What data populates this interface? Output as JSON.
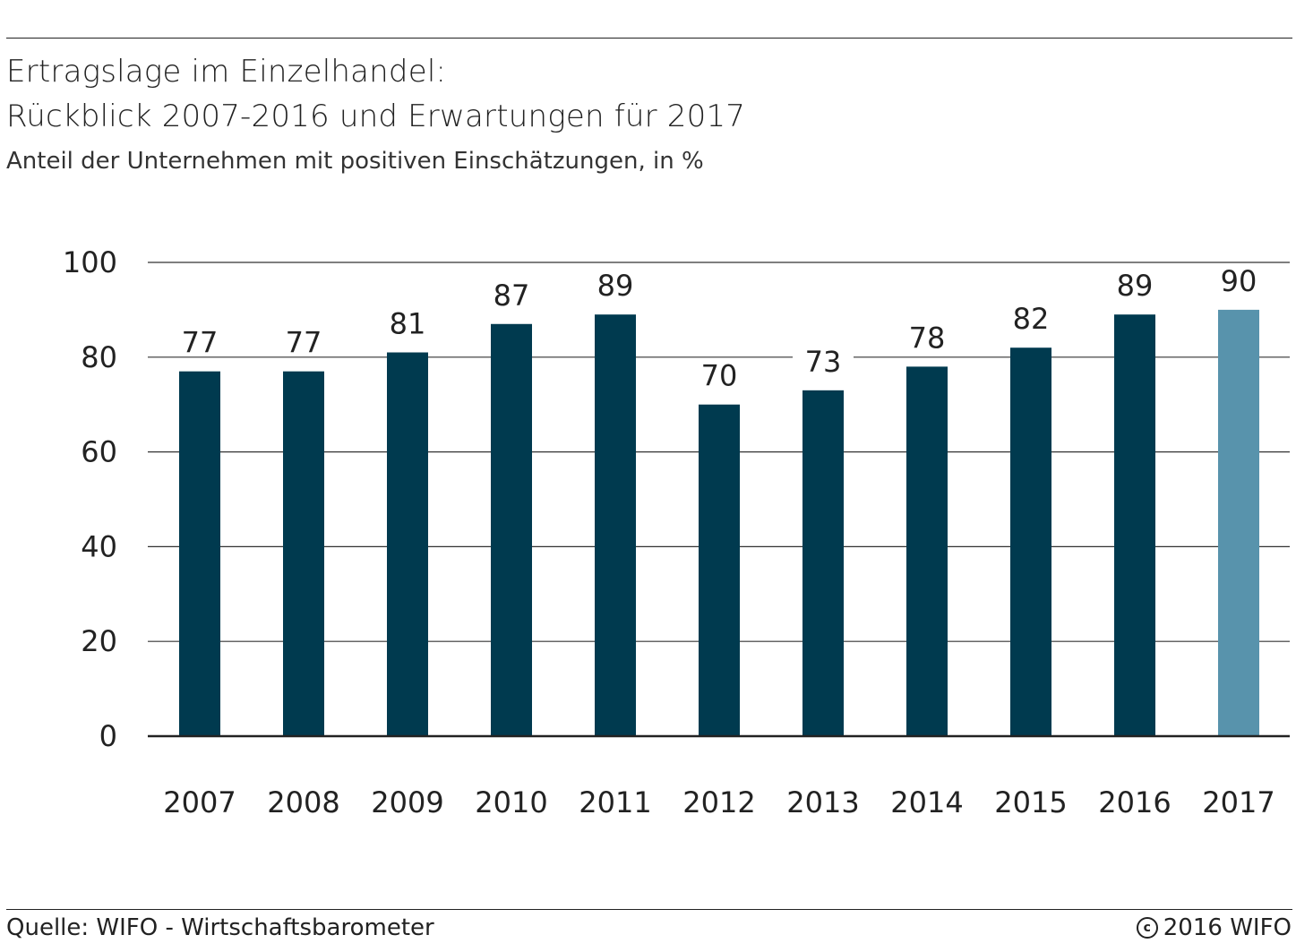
{
  "header": {
    "title_line1": "Ertragslage im Einzelhandel:",
    "title_line2": "Rückblick 2007-2016 und Erwartungen für 2017",
    "subtitle": "Anteil der Unternehmen mit positiven Einschätzungen, in %"
  },
  "footer": {
    "source": "Quelle: WIFO - Wirtschaftsbarometer",
    "copyright": "2016 WIFO",
    "copyright_icon": "copyright-icon"
  },
  "colors": {
    "bar": "#003a4f",
    "bar_highlight": "#5893ac",
    "grid": "#333333"
  },
  "chart_data": {
    "type": "bar",
    "title": "Ertragslage im Einzelhandel: Rückblick 2007-2016 und Erwartungen für 2017",
    "subtitle": "Anteil der Unternehmen mit positiven Einschätzungen, in %",
    "xlabel": "",
    "ylabel": "",
    "categories": [
      "2007",
      "2008",
      "2009",
      "2010",
      "2011",
      "2012",
      "2013",
      "2014",
      "2015",
      "2016",
      "2017"
    ],
    "values": [
      77,
      77,
      81,
      87,
      89,
      70,
      73,
      78,
      82,
      89,
      90
    ],
    "data_labels": [
      "77",
      "77",
      "81",
      "87",
      "89",
      "70",
      "73",
      "78",
      "82",
      "89",
      "90"
    ],
    "highlight_category": "2017",
    "ylim": [
      0,
      100
    ],
    "yticks": [
      "0",
      "20",
      "40",
      "60",
      "80",
      "100"
    ],
    "grid": true,
    "legend": false
  }
}
